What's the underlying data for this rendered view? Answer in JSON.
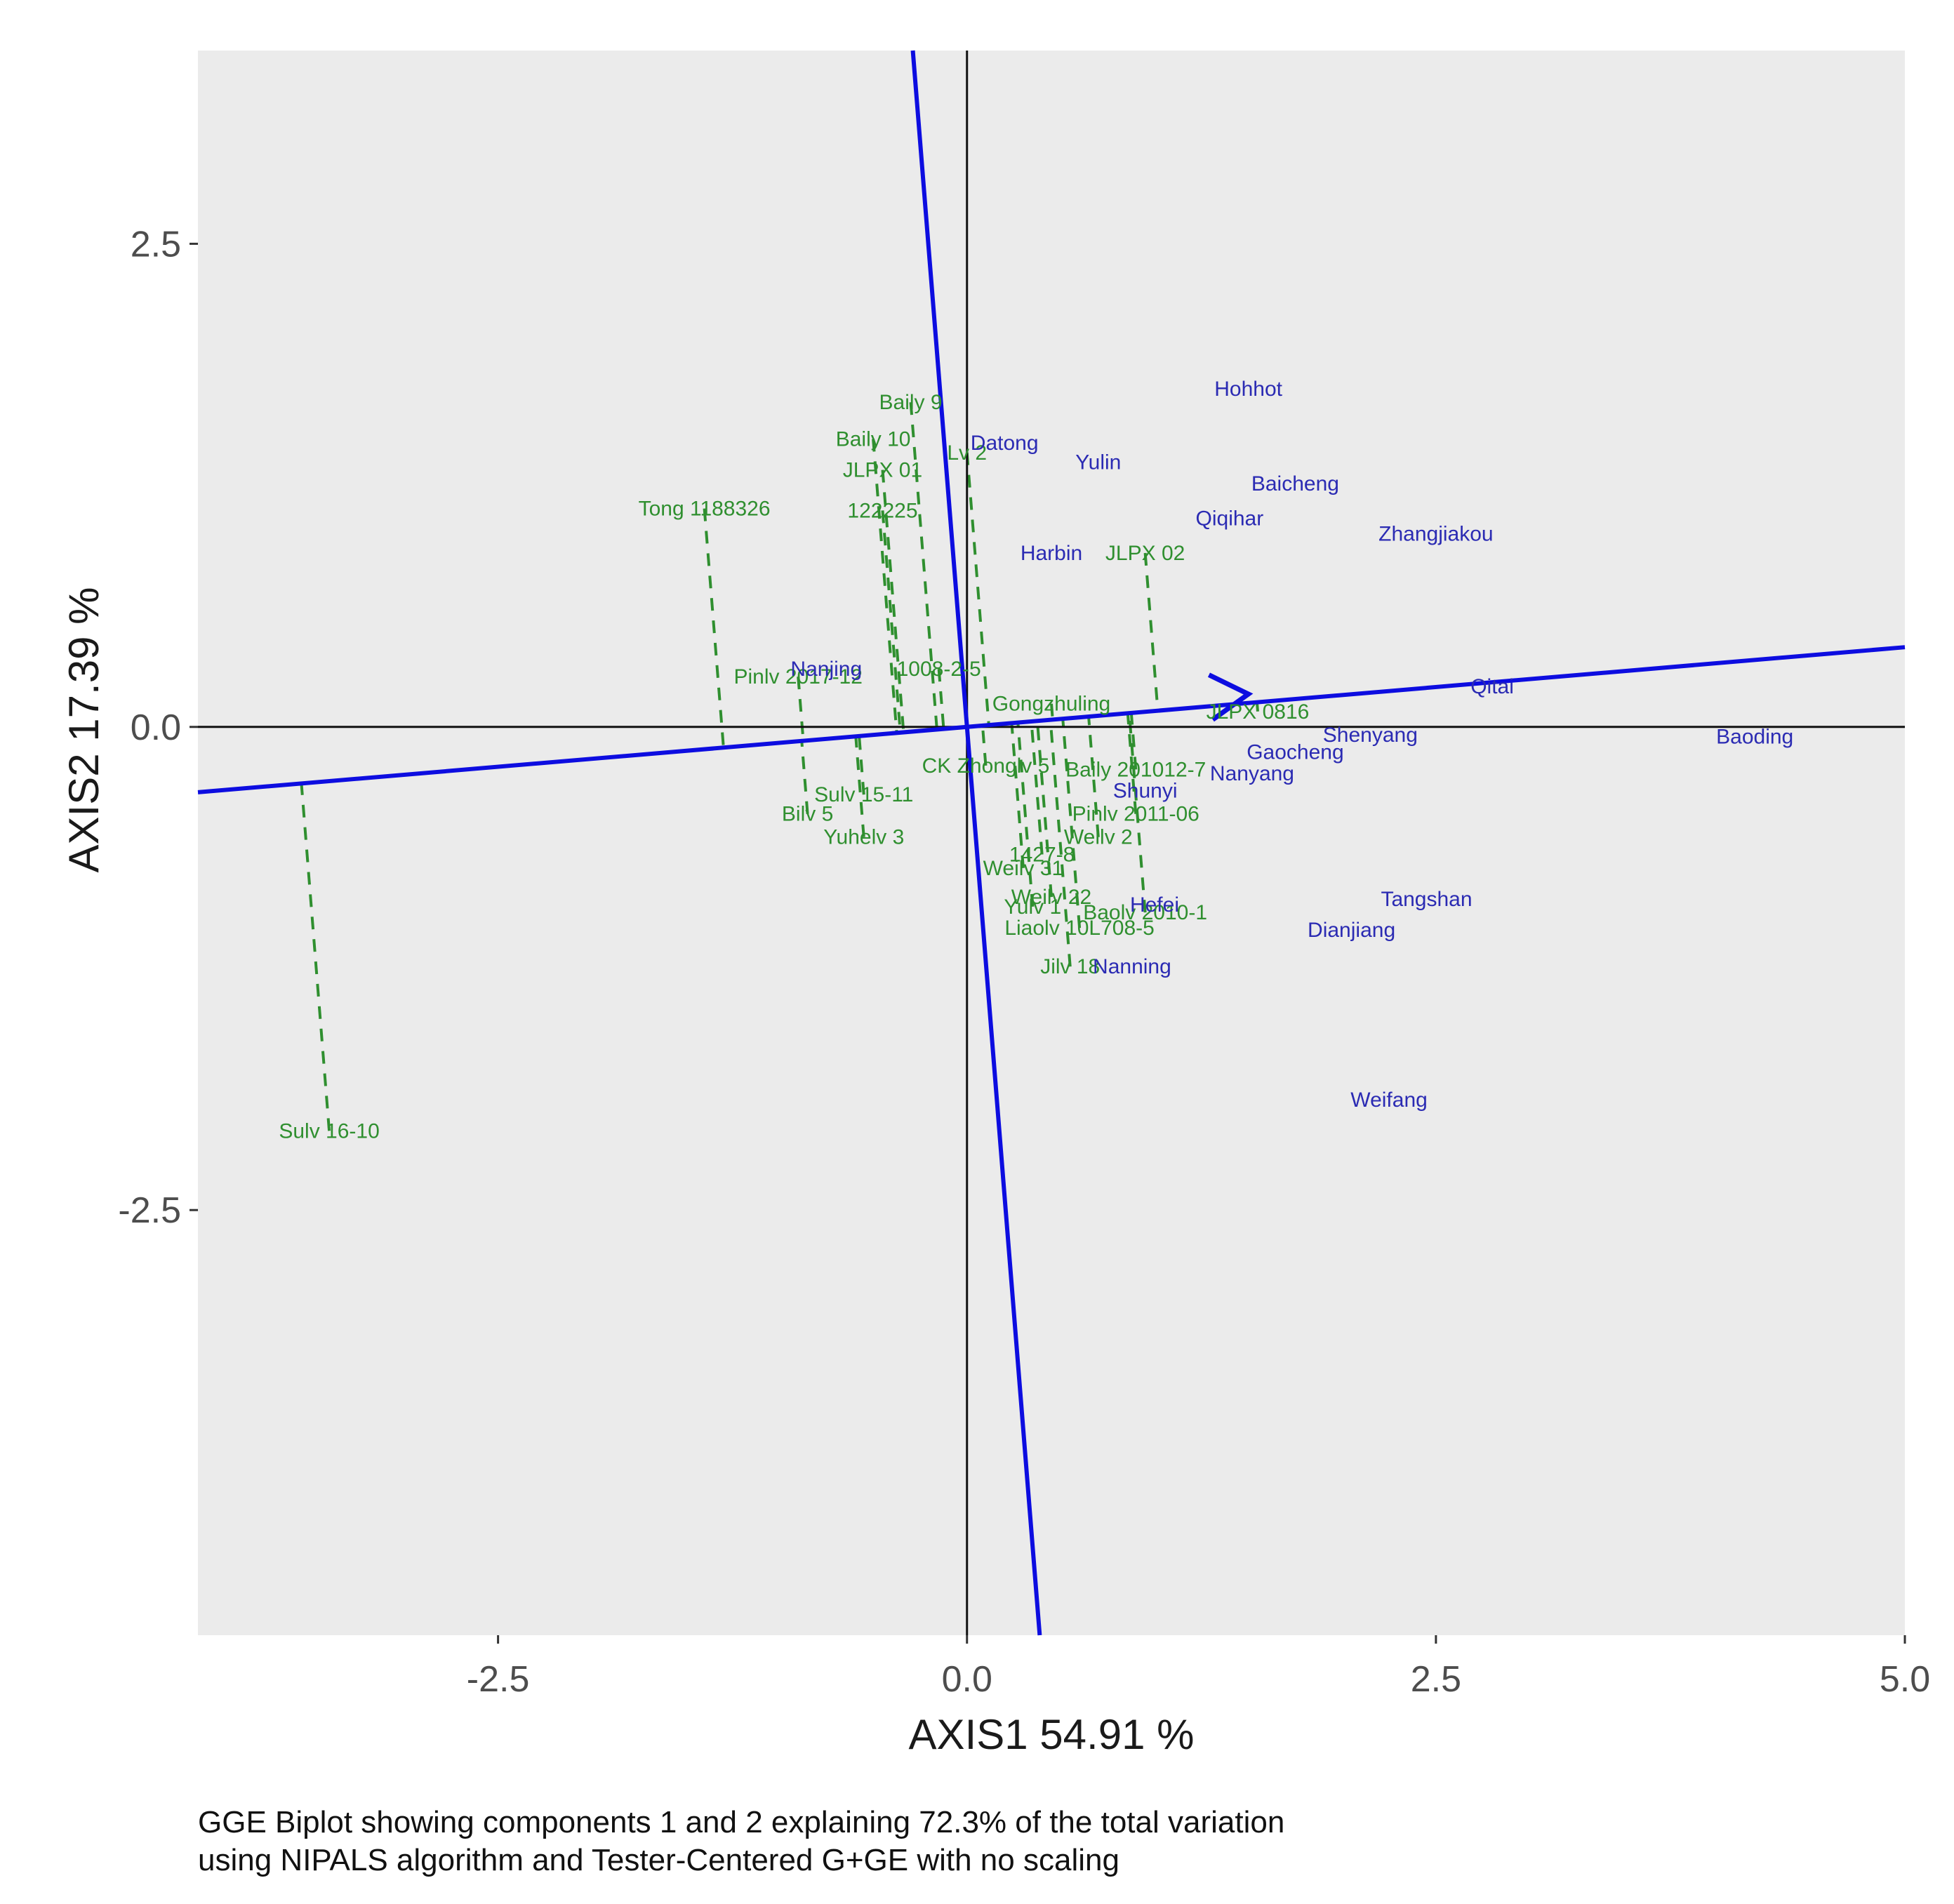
{
  "chart_data": {
    "type": "scatter",
    "subtype": "GGE biplot (average-environment coordination view)",
    "xlabel": "AXIS1 54.91 %",
    "ylabel": "AXIS2 17.39 %",
    "xlim": [
      -4.1,
      5.0
    ],
    "ylim": [
      -4.7,
      3.5
    ],
    "x_ticks": [
      -2.5,
      0.0,
      2.5,
      5.0
    ],
    "x_tick_labels": [
      "-2.5",
      "0.0",
      "2.5",
      "5.0"
    ],
    "y_ticks": [
      -2.5,
      0.0,
      2.5
    ],
    "y_tick_labels": [
      "-2.5",
      "0.0",
      "2.5"
    ],
    "grid": false,
    "colors": {
      "panel": "#ebebeb",
      "genotype": "#2f8f2f",
      "environment": "#2b2bb3",
      "axis_line": "#0d0de0",
      "zero_line": "#111111"
    },
    "aec_abscissa_slope": 0.0825,
    "aec_arrow_tip": [
      1.5,
      0.17
    ],
    "genotypes": [
      {
        "name": "Sulv 16-10",
        "x": -3.4,
        "y": -2.09
      },
      {
        "name": "Tong 1188326",
        "x": -1.4,
        "y": 1.13
      },
      {
        "name": "Baily 9",
        "x": -0.3,
        "y": 1.68
      },
      {
        "name": "Baily 10",
        "x": -0.5,
        "y": 1.49
      },
      {
        "name": "JLPX 01",
        "x": -0.45,
        "y": 1.33
      },
      {
        "name": "122225",
        "x": -0.45,
        "y": 1.12
      },
      {
        "name": "Lv 2",
        "x": 0.0,
        "y": 1.42
      },
      {
        "name": "Pinlv 2017-12",
        "x": -0.9,
        "y": 0.26
      },
      {
        "name": "1008-2-5",
        "x": -0.15,
        "y": 0.3
      },
      {
        "name": "JLPX 02",
        "x": 0.95,
        "y": 0.9
      },
      {
        "name": "Gongzhuling",
        "x": 0.45,
        "y": 0.12
      },
      {
        "name": "JLPX 0816",
        "x": 1.55,
        "y": 0.08
      },
      {
        "name": "CK Zhonglv 5",
        "x": 0.1,
        "y": -0.2
      },
      {
        "name": "Baily 201012-7",
        "x": 0.9,
        "y": -0.22
      },
      {
        "name": "Sulv 15-11",
        "x": -0.55,
        "y": -0.35
      },
      {
        "name": "Bilv 5",
        "x": -0.85,
        "y": -0.45
      },
      {
        "name": "Yuhelv 3",
        "x": -0.55,
        "y": -0.57
      },
      {
        "name": "Pinlv 2011-06",
        "x": 0.9,
        "y": -0.45
      },
      {
        "name": "Weilv 2",
        "x": 0.7,
        "y": -0.57
      },
      {
        "name": "1427-8",
        "x": 0.4,
        "y": -0.66
      },
      {
        "name": "Weilv 31",
        "x": 0.3,
        "y": -0.73
      },
      {
        "name": "Weilv 22",
        "x": 0.45,
        "y": -0.88
      },
      {
        "name": "Yulv 1",
        "x": 0.35,
        "y": -0.93
      },
      {
        "name": "Baolv 2010-1",
        "x": 0.95,
        "y": -0.96
      },
      {
        "name": "Liaolv 10L708-5",
        "x": 0.6,
        "y": -1.04
      },
      {
        "name": "Jilv 18",
        "x": 0.55,
        "y": -1.24
      }
    ],
    "environments": [
      {
        "name": "Hohhot",
        "x": 1.5,
        "y": 1.75
      },
      {
        "name": "Datong",
        "x": 0.2,
        "y": 1.47
      },
      {
        "name": "Yulin",
        "x": 0.7,
        "y": 1.37
      },
      {
        "name": "Baicheng",
        "x": 1.75,
        "y": 1.26
      },
      {
        "name": "Qiqihar",
        "x": 1.4,
        "y": 1.08
      },
      {
        "name": "Zhangjiakou",
        "x": 2.5,
        "y": 1.0
      },
      {
        "name": "Harbin",
        "x": 0.45,
        "y": 0.9
      },
      {
        "name": "Nanjing",
        "x": -0.75,
        "y": 0.3
      },
      {
        "name": "Qitai",
        "x": 2.8,
        "y": 0.21
      },
      {
        "name": "Shenyang",
        "x": 2.15,
        "y": -0.04
      },
      {
        "name": "Baoding",
        "x": 4.2,
        "y": -0.05
      },
      {
        "name": "Gaocheng",
        "x": 1.75,
        "y": -0.13
      },
      {
        "name": "Nanyang",
        "x": 1.52,
        "y": -0.24
      },
      {
        "name": "Shunyi",
        "x": 0.95,
        "y": -0.33
      },
      {
        "name": "Hefei",
        "x": 1.0,
        "y": -0.92
      },
      {
        "name": "Tangshan",
        "x": 2.45,
        "y": -0.89
      },
      {
        "name": "Dianjiang",
        "x": 2.05,
        "y": -1.05
      },
      {
        "name": "Nanning",
        "x": 0.88,
        "y": -1.24
      },
      {
        "name": "Weifang",
        "x": 2.25,
        "y": -1.93
      }
    ]
  },
  "caption": {
    "line1": "GGE Biplot showing components 1 and 2 explaining 72.3% of the total variation",
    "line2": "using NIPALS algorithm and Tester-Centered G+GE with no scaling"
  }
}
